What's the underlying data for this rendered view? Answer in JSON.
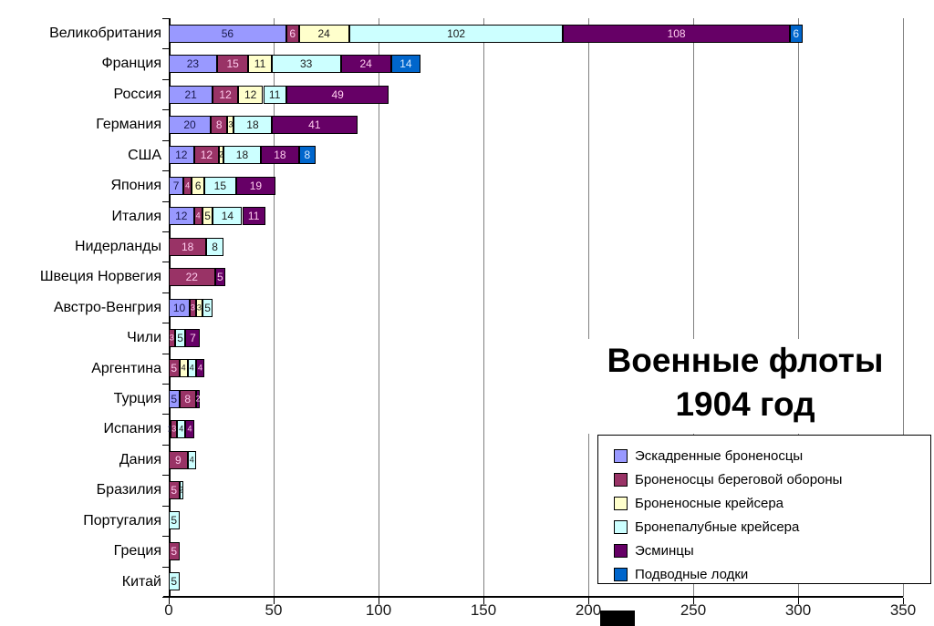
{
  "title": {
    "line1": "Военные флоты",
    "line2": "1904 год"
  },
  "chart_data": {
    "type": "bar",
    "orientation": "horizontal",
    "stacked": true,
    "title": "Военные флоты 1904 год",
    "grid": "vertical",
    "legend_position": "right-bottom",
    "xlim": [
      0,
      350
    ],
    "x_ticks": [
      0,
      50,
      100,
      150,
      200,
      250,
      300,
      350
    ],
    "categories": [
      "Великобритания",
      "Франция",
      "Россия",
      "Германия",
      "США",
      "Япония",
      "Италия",
      "Нидерланды",
      "Швеция Норвегия",
      "Австро-Венгрия",
      "Чили",
      "Аргентина",
      "Турция",
      "Испания",
      "Дания",
      "Бразилия",
      "Португалия",
      "Греция",
      "Китай"
    ],
    "series": [
      {
        "name": "Эскадренные броненосцы",
        "color": "#9999FF",
        "label_color": "#1a1a4d",
        "values": [
          56,
          23,
          21,
          20,
          12,
          7,
          12,
          0,
          0,
          10,
          0,
          0,
          5,
          1,
          0,
          0,
          0,
          0,
          0
        ]
      },
      {
        "name": "Броненосцы береговой обороны",
        "color": "#993366",
        "label_color": "#ffccee",
        "values": [
          6,
          15,
          12,
          8,
          12,
          4,
          4,
          18,
          22,
          3,
          3,
          5,
          8,
          3,
          9,
          5,
          0,
          5,
          0
        ]
      },
      {
        "name": "Броненосные крейсера",
        "color": "#FFFFCC",
        "label_color": "#1a1a1a",
        "values": [
          24,
          11,
          12,
          3,
          2,
          6,
          5,
          0,
          0,
          3,
          0,
          4,
          0,
          0,
          0,
          0,
          0,
          0,
          0
        ]
      },
      {
        "name": "Бронепалубные крейсера",
        "color": "#CCFFFF",
        "label_color": "#1a1a1a",
        "values": [
          102,
          33,
          11,
          18,
          18,
          15,
          14,
          8,
          0,
          5,
          5,
          4,
          0,
          4,
          4,
          2,
          5,
          0,
          5
        ]
      },
      {
        "name": "Эсминцы",
        "color": "#660066",
        "label_color": "#ffccee",
        "values": [
          108,
          24,
          49,
          41,
          18,
          19,
          11,
          0,
          5,
          0,
          7,
          4,
          2,
          4,
          0,
          0,
          0,
          0,
          0
        ]
      },
      {
        "name": "Подводные лодки",
        "color": "#0066CC",
        "label_color": "#d8eaff",
        "values": [
          6,
          14,
          0,
          0,
          8,
          0,
          0,
          0,
          0,
          0,
          0,
          0,
          0,
          0,
          0,
          0,
          0,
          0,
          0
        ]
      }
    ]
  }
}
